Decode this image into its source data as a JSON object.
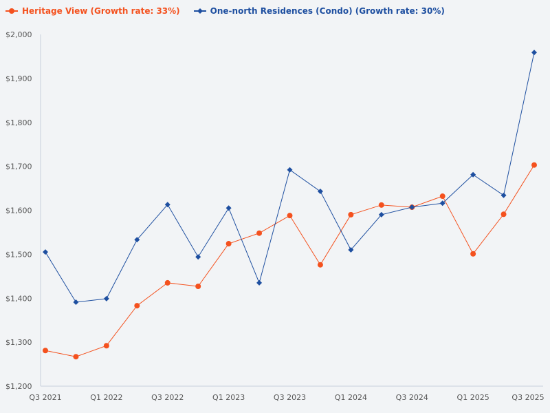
{
  "chart_data": {
    "type": "line",
    "title": "",
    "xlabel": "",
    "ylabel": "",
    "ylim": [
      1200,
      2000
    ],
    "y_ticks": [
      "$1,200",
      "$1,300",
      "$1,400",
      "$1,500",
      "$1,600",
      "$1,700",
      "$1,800",
      "$1,900",
      "$2,000"
    ],
    "y_tick_values": [
      1200,
      1300,
      1400,
      1500,
      1600,
      1700,
      1800,
      1900,
      2000
    ],
    "x": [
      "Q3 2021",
      "Q4 2021",
      "Q1 2022",
      "Q2 2022",
      "Q3 2022",
      "Q4 2022",
      "Q1 2023",
      "Q2 2023",
      "Q3 2023",
      "Q4 2023",
      "Q1 2024",
      "Q2 2024",
      "Q3 2024",
      "Q4 2024",
      "Q1 2025",
      "Q2 2025",
      "Q3 2025"
    ],
    "x_tick_labels": [
      "Q3 2021",
      "Q1 2022",
      "Q3 2022",
      "Q1 2023",
      "Q3 2023",
      "Q1 2024",
      "Q3 2024",
      "Q1 2025",
      "Q3 2025"
    ],
    "grid": false,
    "legend_position": "top-left",
    "series": [
      {
        "name": "Heritage View (Growth rate: 33%)",
        "color": "#f4511e",
        "marker": "circle",
        "values": [
          1281,
          1267,
          1292,
          1383,
          1435,
          1427,
          1524,
          1548,
          1588,
          1476,
          1590,
          1612,
          1607,
          1632,
          1501,
          1591,
          1703
        ]
      },
      {
        "name": "One-north Residences (Condo) (Growth rate: 30%)",
        "color": "#1e4fa0",
        "marker": "diamond",
        "values": [
          1505,
          1391,
          1399,
          1533,
          1613,
          1494,
          1605,
          1435,
          1692,
          1643,
          1510,
          1590,
          1607,
          1616,
          1681,
          1634,
          1959
        ]
      }
    ]
  }
}
